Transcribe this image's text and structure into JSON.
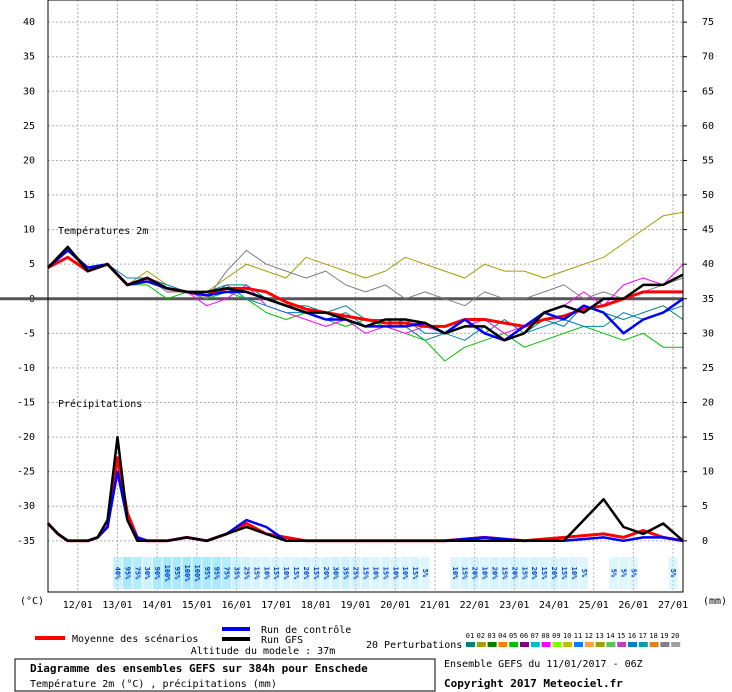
{
  "chart_data": {
    "type": "line",
    "title": "Diagramme des ensembles GEFS sur 384h pour Enschede",
    "subtitle": "Température 2m (°C) , précipitations (mm)",
    "run_label": "Ensemble GEFS du 11/01/2017 - 06Z",
    "copyright": "Copyright 2017 Meteociel.fr",
    "altitude": "Altitude du modele : 37m",
    "y_unit": "(°C)",
    "y2_unit": "(mm)",
    "temperature_label": "Températures 2m",
    "precipitation_label": "Précipitations",
    "perturbations_label": "20 Perturbations",
    "grid": true,
    "xlim": [
      0,
      384
    ],
    "xticks": [
      {
        "value": 18,
        "label": "12/01"
      },
      {
        "value": 42,
        "label": "13/01"
      },
      {
        "value": 66,
        "label": "14/01"
      },
      {
        "value": 90,
        "label": "15/01"
      },
      {
        "value": 114,
        "label": "16/01"
      },
      {
        "value": 138,
        "label": "17/01"
      },
      {
        "value": 162,
        "label": "18/01"
      },
      {
        "value": 186,
        "label": "19/01"
      },
      {
        "value": 210,
        "label": "20/01"
      },
      {
        "value": 234,
        "label": "21/01"
      },
      {
        "value": 258,
        "label": "22/01"
      },
      {
        "value": 282,
        "label": "23/01"
      },
      {
        "value": 306,
        "label": "24/01"
      },
      {
        "value": 330,
        "label": "25/01"
      },
      {
        "value": 354,
        "label": "26/01"
      },
      {
        "value": 378,
        "label": "27/01"
      }
    ],
    "ylim": [
      -42.4,
      43.2
    ],
    "yticks": [
      40,
      35,
      30,
      25,
      20,
      15,
      10,
      5,
      0,
      -5,
      -10,
      -15,
      -20,
      -25,
      -30,
      -35
    ],
    "y2lim": [
      -7.4,
      78.2
    ],
    "y2ticks": [
      75,
      70,
      65,
      60,
      55,
      50,
      45,
      40,
      35,
      30,
      25,
      20,
      15,
      10,
      5,
      0
    ],
    "x": [
      0,
      12,
      24,
      36,
      48,
      60,
      72,
      84,
      96,
      108,
      120,
      132,
      144,
      156,
      168,
      180,
      192,
      204,
      216,
      228,
      240,
      252,
      264,
      276,
      288,
      300,
      312,
      324,
      336,
      348,
      360,
      372,
      384
    ],
    "series": [
      {
        "name": "Moyenne des scénarios",
        "color": "#ff0000",
        "values": [
          4.5,
          6,
          4,
          5,
          2,
          3,
          1.5,
          1,
          0.5,
          1.5,
          1.5,
          1,
          -0.5,
          -1.5,
          -2,
          -2.5,
          -3,
          -3.5,
          -3.5,
          -4,
          -4,
          -3,
          -3,
          -3.5,
          -4,
          -3,
          -2.5,
          -1.5,
          -1,
          0,
          1,
          1,
          1
        ]
      },
      {
        "name": "Run de contrôle",
        "color": "#0000ff",
        "values": [
          4.5,
          7,
          4.5,
          5,
          2,
          2.5,
          1.5,
          1,
          0.5,
          1,
          1,
          0,
          -1,
          -2,
          -3,
          -3,
          -4,
          -4,
          -4,
          -3.5,
          -5,
          -3,
          -5,
          -6,
          -4,
          -2,
          -3,
          -1,
          -2,
          -5,
          -3,
          -2,
          0
        ]
      },
      {
        "name": "Run GFS",
        "color": "#000000",
        "values": [
          4.5,
          7.5,
          4,
          5,
          2,
          3,
          1.5,
          1,
          1,
          1.5,
          1,
          0,
          -1,
          -2,
          -2,
          -3,
          -4,
          -3,
          -3,
          -3.5,
          -5,
          -4,
          -4,
          -6,
          -5,
          -2,
          -1,
          -2,
          0,
          0,
          2,
          2,
          3.5
        ]
      }
    ],
    "perturbations": [
      {
        "name": "01",
        "color": "#008080",
        "values": [
          4.5,
          7,
          4,
          5,
          2,
          3,
          1.5,
          1,
          0,
          2,
          2,
          0,
          -1,
          -1,
          -2,
          -1,
          -3,
          -3,
          -4,
          -6,
          -5,
          -3,
          -5,
          -3,
          -5,
          -3,
          -4,
          -1,
          -2,
          -3,
          -2,
          -1,
          -3
        ]
      },
      {
        "name": "02",
        "color": "#a0a000"
      },
      {
        "name": "03",
        "color": "#008000"
      },
      {
        "name": "04",
        "color": "#ff8000"
      },
      {
        "name": "05",
        "color": "#00c000",
        "values": [
          4.5,
          7.5,
          4.5,
          5,
          2,
          2,
          0,
          1,
          0,
          1,
          0,
          -2,
          -3,
          -2,
          -3,
          -4,
          -3,
          -4,
          -5,
          -6,
          -9,
          -7,
          -6,
          -5,
          -7,
          -6,
          -5,
          -4,
          -5,
          -6,
          -5,
          -7,
          -7
        ]
      },
      {
        "name": "06",
        "color": "#800080"
      },
      {
        "name": "07",
        "color": "#00c0c0"
      },
      {
        "name": "08",
        "color": "#ff00ff",
        "values": [
          4.5,
          7,
          4,
          5,
          2,
          3,
          1,
          1,
          -1,
          0,
          2,
          -1,
          -2,
          -3,
          -4,
          -3,
          -5,
          -4,
          -5,
          -4,
          -5,
          -4,
          -3,
          -5,
          -4,
          -2,
          -1,
          1,
          -1,
          2,
          3,
          2,
          5
        ]
      },
      {
        "name": "09",
        "color": "#80ff00"
      },
      {
        "name": "10",
        "color": "#c0c000"
      },
      {
        "name": "11",
        "color": "#0080ff"
      },
      {
        "name": "12",
        "color": "#ffa040"
      },
      {
        "name": "13",
        "color": "#a0a000",
        "values": [
          4.5,
          7.5,
          4,
          5,
          2,
          4,
          2,
          1,
          1,
          3,
          5,
          4,
          3,
          6,
          5,
          4,
          3,
          4,
          6,
          5,
          4,
          3,
          5,
          4,
          4,
          3,
          4,
          5,
          6,
          8,
          10,
          12,
          12.5
        ]
      },
      {
        "name": "14",
        "color": "#60c060"
      },
      {
        "name": "15",
        "color": "#c040c0"
      },
      {
        "name": "16",
        "color": "#0080c0",
        "values": [
          4.5,
          7,
          4,
          5,
          3,
          3,
          2,
          1,
          1,
          2,
          0,
          -1,
          -2,
          -2,
          -3,
          -2,
          -4,
          -4,
          -3,
          -5,
          -5,
          -6,
          -4,
          -6,
          -5,
          -4,
          -3,
          -4,
          -4,
          -2,
          -3,
          -2,
          -1
        ]
      },
      {
        "name": "17",
        "color": "#00a0a0"
      },
      {
        "name": "18",
        "color": "#e08020"
      },
      {
        "name": "19",
        "color": "#808080",
        "values": [
          4.5,
          7,
          4,
          5,
          2,
          3,
          1,
          1,
          0,
          4,
          7,
          5,
          4,
          3,
          4,
          2,
          1,
          2,
          0,
          1,
          0,
          -1,
          1,
          0,
          0,
          1,
          2,
          0,
          1,
          0,
          1,
          2,
          3
        ]
      },
      {
        "name": "20",
        "color": "#a0a0a0"
      }
    ],
    "precipitation": {
      "x": [
        0,
        6,
        12,
        18,
        24,
        30,
        36,
        42,
        48,
        54,
        60,
        72,
        84,
        96,
        108,
        120,
        132,
        144,
        156,
        168,
        192,
        216,
        240,
        264,
        288,
        312,
        336,
        348,
        360,
        372,
        384
      ],
      "series": [
        {
          "color": "#ff0000",
          "axis": "y2",
          "values": [
            2.5,
            1,
            0,
            0,
            0,
            0.5,
            2,
            12,
            4,
            0.5,
            0,
            0,
            0.5,
            0,
            1,
            2.5,
            1,
            0.5,
            0,
            0,
            0,
            0,
            0,
            0.5,
            0,
            0.5,
            1,
            0.5,
            1.5,
            0.5,
            0
          ]
        },
        {
          "color": "#0000ff",
          "axis": "y2",
          "values": [
            2.5,
            1,
            0,
            0,
            0,
            0.5,
            2,
            10,
            3,
            0.5,
            0,
            0,
            0.5,
            0,
            1,
            3,
            2,
            0,
            0,
            0,
            0,
            0,
            0,
            0.5,
            0,
            0,
            0.5,
            0,
            0.5,
            0.5,
            0
          ]
        },
        {
          "color": "#000000",
          "axis": "y2",
          "values": [
            2.5,
            1,
            0,
            0,
            0,
            0.5,
            3,
            15,
            3,
            0,
            0,
            0,
            0.5,
            0,
            1,
            2,
            1,
            0,
            0,
            0,
            0,
            0,
            0,
            0,
            0,
            0,
            6,
            2,
            1,
            2.5,
            0
          ]
        }
      ]
    },
    "precipitation_probability": {
      "x": [
        42,
        48,
        54,
        60,
        66,
        72,
        78,
        84,
        90,
        96,
        102,
        108,
        114,
        120,
        126,
        132,
        138,
        144,
        150,
        156,
        162,
        168,
        174,
        180,
        186,
        192,
        198,
        204,
        210,
        216,
        222,
        228,
        246,
        252,
        258,
        264,
        270,
        276,
        282,
        288,
        294,
        300,
        306,
        312,
        318,
        324,
        342,
        348,
        354,
        378
      ],
      "values": [
        40,
        95,
        75,
        30,
        90,
        100,
        95,
        100,
        100,
        95,
        95,
        75,
        35,
        25,
        15,
        10,
        15,
        10,
        15,
        20,
        15,
        20,
        30,
        35,
        25,
        15,
        10,
        15,
        10,
        10,
        15,
        5,
        10,
        15,
        20,
        10,
        20,
        15,
        20,
        15,
        20,
        15,
        20,
        15,
        10,
        5,
        5,
        5,
        5,
        5
      ],
      "value_labels": [
        "40%",
        "95%",
        "75%",
        "30%",
        "90%",
        "100%",
        "95%",
        "100%",
        "100%",
        "95%",
        "95%",
        "75%",
        "35%",
        "25%",
        "15%",
        "10%",
        "15%",
        "10%",
        "15%",
        "20%",
        "15%",
        "20%",
        "30%",
        "35%",
        "25%",
        "15%",
        "10%",
        "15%",
        "10%",
        "10%",
        "15%",
        "5%",
        "10%",
        "15%",
        "20%",
        "10%",
        "20%",
        "15%",
        "20%",
        "15%",
        "20%",
        "15%",
        "20%",
        "15%",
        "10%",
        "5%",
        "5%",
        "5%",
        "5%",
        "5%"
      ]
    }
  }
}
